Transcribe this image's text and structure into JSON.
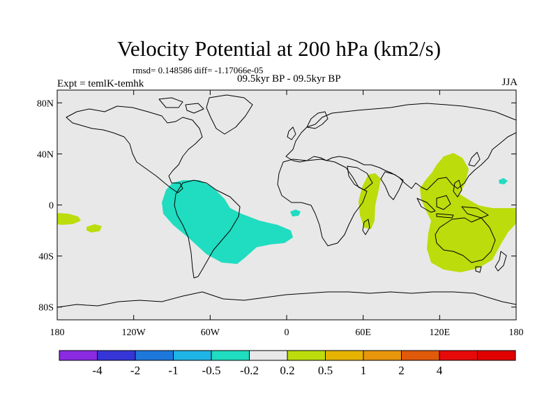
{
  "title": "Velocity Potential at 200 hPa (km2/s)",
  "stats": "rmsd= 0.148586 diff= -1.17066e-05",
  "subtitle_center": "09.5kyr BP - 09.5kyr BP",
  "subtitle_left": "Expt = temlK-temhk",
  "subtitle_right": "JJA",
  "map": {
    "projection": "cylindrical-equidistant",
    "lon_range": [
      -180,
      180
    ],
    "lat_range": [
      -90,
      90
    ],
    "background": "#e8e8e8",
    "y_ticks": [
      {
        "lat": 80,
        "label": "80N"
      },
      {
        "lat": 40,
        "label": "40N"
      },
      {
        "lat": 0,
        "label": "0"
      },
      {
        "lat": -40,
        "label": "40S"
      },
      {
        "lat": -80,
        "label": "80S"
      }
    ],
    "x_ticks": [
      {
        "lon": -180,
        "label": "180"
      },
      {
        "lon": -120,
        "label": "120W"
      },
      {
        "lon": -60,
        "label": "60W"
      },
      {
        "lon": 0,
        "label": "0"
      },
      {
        "lon": 60,
        "label": "60E"
      },
      {
        "lon": 120,
        "label": "120E"
      },
      {
        "lon": 180,
        "label": "180"
      }
    ]
  },
  "colorbar": {
    "colors": [
      "#8a2be2",
      "#3535d8",
      "#1e78dc",
      "#1fb4e6",
      "#20dcc0",
      "#e8e8e8",
      "#bcdc0c",
      "#e6b400",
      "#e8960c",
      "#e05a0a",
      "#e60a0a",
      "#e00000"
    ],
    "labels": [
      "-4",
      "-2",
      "-1",
      "-0.5",
      "-0.2",
      "0.2",
      "0.5",
      "1",
      "2",
      "4"
    ]
  },
  "fields": [
    {
      "name": "negative-anomaly-south-america",
      "level": "-0.2",
      "color": "#20dcc0"
    },
    {
      "name": "negative-anomaly-gulf-of-guinea",
      "level": "-0.2",
      "color": "#20dcc0"
    },
    {
      "name": "negative-anomaly-west-pacific",
      "level": "-0.2",
      "color": "#20dcc0"
    },
    {
      "name": "positive-anomaly-arabian-sea",
      "level": "0.2",
      "color": "#bcdc0c"
    },
    {
      "name": "positive-anomaly-maritime-continent",
      "level": "0.2",
      "color": "#bcdc0c"
    },
    {
      "name": "positive-anomaly-central-pacific",
      "level": "0.2",
      "color": "#bcdc0c"
    },
    {
      "name": "positive-anomaly-south-pacific",
      "level": "0.2",
      "color": "#bcdc0c"
    }
  ]
}
